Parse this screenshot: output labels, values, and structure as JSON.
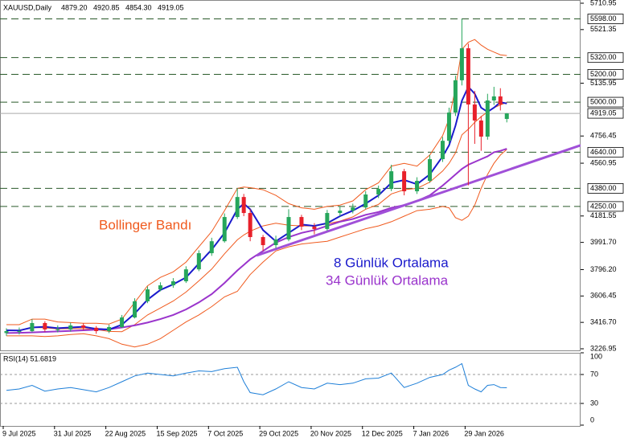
{
  "chart_data": [
    {
      "type": "candlestick",
      "header": {
        "symbol": "XAUUSD,Daily",
        "ohlc": [
          "4879.20",
          "4920.85",
          "4854.30",
          "4919.05"
        ]
      },
      "x": [
        1,
        5,
        9,
        13,
        17,
        21,
        25,
        29,
        33,
        37,
        41,
        45,
        49,
        53,
        57,
        61,
        65,
        69,
        73,
        75,
        77,
        81,
        85,
        89,
        93,
        97,
        101,
        105,
        109,
        113,
        117,
        121,
        125,
        129,
        133,
        137,
        139,
        141,
        143,
        145,
        147,
        149,
        151,
        153,
        155,
        157
      ],
      "open": [
        3340,
        3354,
        3354,
        3412,
        3366,
        3366,
        3395,
        3378,
        3354,
        3383,
        3452,
        3568,
        3654,
        3683,
        3712,
        3798,
        3914,
        4000,
        4174,
        4318,
        4203,
        4030,
        3972,
        4013,
        4174,
        4105,
        4088,
        4203,
        4220,
        4243,
        4336,
        4376,
        4503,
        4359,
        4434,
        4590,
        4722,
        4925,
        5157,
        5387,
        4983,
        4868,
        4752,
        5012,
        5041,
        4879.2
      ],
      "high": [
        3375,
        3380,
        3440,
        3425,
        3395,
        3415,
        3410,
        3390,
        3400,
        3470,
        3590,
        3675,
        3705,
        3735,
        3820,
        3935,
        4025,
        4200,
        4381,
        4340,
        4230,
        4045,
        4040,
        4230,
        4190,
        4130,
        4225,
        4250,
        4270,
        4360,
        4400,
        4550,
        4520,
        4460,
        4620,
        4750,
        4960,
        5190,
        5598,
        5420,
        5080,
        4900,
        5060,
        5110,
        5100,
        4920.85
      ],
      "low": [
        3320,
        3330,
        3345,
        3350,
        3345,
        3350,
        3360,
        3335,
        3340,
        3375,
        3445,
        3555,
        3640,
        3665,
        3700,
        3785,
        3895,
        3990,
        4160,
        4180,
        4000,
        3930,
        3950,
        4000,
        4080,
        4050,
        4075,
        4180,
        4200,
        4230,
        4310,
        4360,
        4330,
        4340,
        4420,
        4570,
        4700,
        4900,
        5120,
        4402,
        4700,
        4650,
        4730,
        4980,
        4940,
        4854.3
      ],
      "close": [
        3354,
        3354,
        3412,
        3366,
        3366,
        3395,
        3378,
        3354,
        3383,
        3452,
        3568,
        3654,
        3683,
        3712,
        3798,
        3914,
        4000,
        4174,
        4318,
        4203,
        4030,
        3972,
        4013,
        4174,
        4105,
        4088,
        4203,
        4220,
        4243,
        4336,
        4376,
        4503,
        4359,
        4434,
        4590,
        4722,
        4925,
        5157,
        5387,
        4983,
        4868,
        4752,
        5012,
        5041,
        4983,
        4919.05
      ],
      "up_color": "#26a65b",
      "down_color": "#e8202a",
      "overlays": [
        {
          "color": "#f05a1e",
          "width": 1,
          "values": [
            3400,
            3400,
            3440,
            3440,
            3420,
            3415,
            3410,
            3410,
            3405,
            3440,
            3560,
            3680,
            3740,
            3780,
            3850,
            3960,
            4070,
            4220,
            4380,
            4390,
            4385,
            4370,
            4330,
            4270,
            4240,
            4230,
            4250,
            4260,
            4290,
            4370,
            4420,
            4540,
            4560,
            4540,
            4620,
            4760,
            4880,
            5100,
            5380,
            5430,
            5450,
            5410,
            5380,
            5360,
            5340,
            5335
          ]
        },
        {
          "color": "#f05a1e",
          "width": 1,
          "values": [
            3360,
            3360,
            3380,
            3378,
            3370,
            3372,
            3372,
            3365,
            3352,
            3350,
            3400,
            3470,
            3520,
            3570,
            3635,
            3715,
            3800,
            3910,
            4010,
            4045,
            4072,
            4110,
            4130,
            4115,
            4110,
            4110,
            4125,
            4145,
            4175,
            4230,
            4265,
            4340,
            4370,
            4380,
            4425,
            4505,
            4560,
            4635,
            4765,
            4805,
            4855,
            4895,
            4930,
            4960,
            4980,
            4998
          ]
        },
        {
          "color": "#f05a1e",
          "width": 1,
          "values": [
            3320,
            3320,
            3320,
            3315,
            3320,
            3330,
            3335,
            3320,
            3300,
            3260,
            3240,
            3260,
            3300,
            3360,
            3420,
            3470,
            3530,
            3600,
            3640,
            3700,
            3760,
            3850,
            3930,
            3960,
            3980,
            3990,
            4000,
            4030,
            4060,
            4090,
            4110,
            4140,
            4180,
            4220,
            4230,
            4250,
            4240,
            4170,
            4150,
            4180,
            4260,
            4380,
            4480,
            4560,
            4620,
            4660
          ]
        },
        {
          "color": "#9a34cc",
          "width": 2,
          "values": [
            3340,
            3342,
            3345,
            3348,
            3352,
            3356,
            3360,
            3364,
            3368,
            3380,
            3395,
            3415,
            3440,
            3470,
            3510,
            3560,
            3620,
            3700,
            3790,
            3830,
            3870,
            3930,
            3990,
            4030,
            4060,
            4080,
            4110,
            4140,
            4160,
            4190,
            4210,
            4240,
            4260,
            4290,
            4330,
            4400,
            4440,
            4480,
            4520,
            4550,
            4570,
            4590,
            4610,
            4640,
            4650,
            4665
          ]
        },
        {
          "color": "#1a1acc",
          "width": 2,
          "values": [
            3360,
            3358,
            3380,
            3385,
            3375,
            3380,
            3385,
            3370,
            3365,
            3400,
            3480,
            3580,
            3650,
            3690,
            3740,
            3840,
            3940,
            4060,
            4230,
            4270,
            4230,
            4080,
            4000,
            4060,
            4120,
            4110,
            4130,
            4180,
            4220,
            4270,
            4330,
            4420,
            4440,
            4410,
            4480,
            4610,
            4690,
            4830,
            5010,
            5110,
            5060,
            4960,
            4930,
            4960,
            5000,
            4990
          ]
        }
      ],
      "trendline": {
        "color": "#a050d8",
        "x": [
          79,
          180
        ],
        "y": [
          3897,
          4690
        ]
      },
      "levels": [
        {
          "value": 5598,
          "label": "5598.00"
        },
        {
          "value": 5320,
          "label": "5320.00"
        },
        {
          "value": 5200,
          "label": "5200.00"
        },
        {
          "value": 5000,
          "label": "5000.00"
        },
        {
          "value": 4640,
          "label": "4640.00"
        },
        {
          "value": 4380,
          "label": "4380.00"
        },
        {
          "value": 4250,
          "label": "4250.00"
        }
      ],
      "current_price": 4919.05,
      "annotations": [
        {
          "text": "Bollinger Bandı",
          "color": "#f05a1e"
        },
        {
          "text": "8 Günlük Ortalama",
          "color": "#1a1acc"
        },
        {
          "text": "34 Günlük Ortalama",
          "color": "#9a34cc"
        }
      ],
      "xlim": [
        -1,
        180
      ],
      "ylim": [
        3226.95,
        5710.95
      ],
      "yticks": [
        5710.95,
        5521.35,
        5135.95,
        4756.45,
        4560.95,
        4181.55,
        {
          "value": 3991.7,
          "label": "3991.70"
        },
        {
          "value": 3796.2,
          "label": "3796.20"
        },
        3606.45,
        {
          "value": 3416.7,
          "label": "3416.70"
        },
        3226.95
      ]
    },
    {
      "type": "line",
      "title": "RSI(14) 51.6819",
      "x": [
        1,
        5,
        9,
        13,
        17,
        21,
        25,
        29,
        33,
        37,
        41,
        45,
        49,
        53,
        57,
        61,
        65,
        69,
        73,
        75,
        77,
        81,
        85,
        89,
        93,
        97,
        101,
        105,
        109,
        113,
        117,
        121,
        125,
        129,
        133,
        137,
        139,
        141,
        143,
        145,
        147,
        149,
        151,
        153,
        155,
        157
      ],
      "values": [
        48,
        50,
        55,
        47,
        50,
        52,
        49,
        46,
        52,
        60,
        68,
        72,
        70,
        68,
        72,
        75,
        74,
        78,
        80,
        60,
        45,
        42,
        50,
        60,
        52,
        50,
        58,
        56,
        58,
        64,
        65,
        72,
        52,
        58,
        66,
        70,
        76,
        80,
        85,
        55,
        50,
        46,
        55,
        56,
        52,
        51.6819
      ],
      "color": "#1e7fd8",
      "xlim": [
        -1,
        180
      ],
      "ylim": [
        0,
        100
      ],
      "yticks": [
        100,
        70,
        30,
        0
      ],
      "xticks": [
        {
          "value": 0,
          "label": "9 Jul 2025"
        },
        {
          "value": 16,
          "label": "31 Jul 2025"
        },
        {
          "value": 32,
          "label": "22 Aug 2025"
        },
        {
          "value": 48,
          "label": "15 Sep 2025"
        },
        {
          "value": 64,
          "label": "7 Oct 2025"
        },
        {
          "value": 80,
          "label": "29 Oct 2025"
        },
        {
          "value": 96,
          "label": "20 Nov 2025"
        },
        {
          "value": 112,
          "label": "12 Dec 2025"
        },
        {
          "value": 128,
          "label": "7 Jan 2026"
        },
        {
          "value": 144,
          "label": "29 Jan 2026"
        }
      ]
    }
  ]
}
